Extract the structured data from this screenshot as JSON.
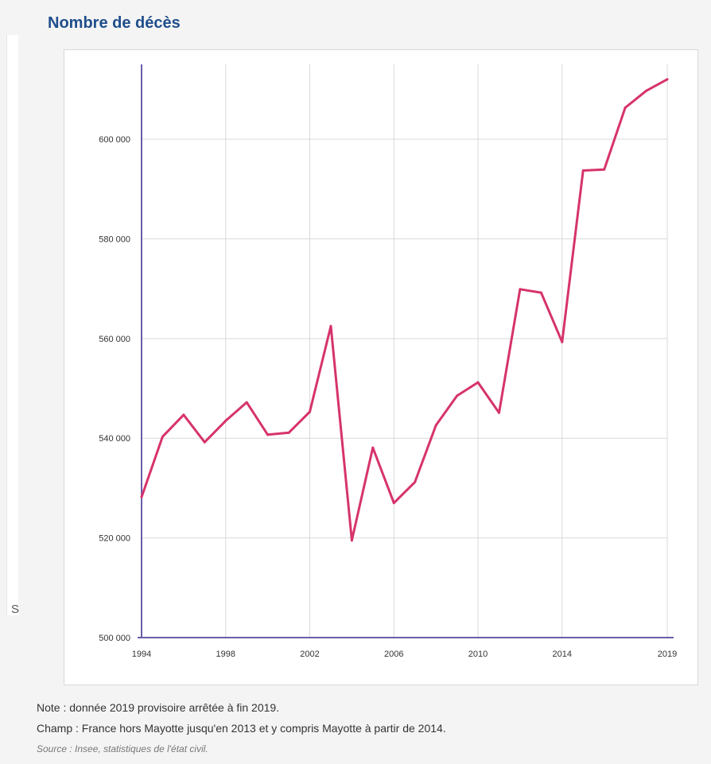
{
  "page": {
    "title": "Nombre de décès",
    "background_letter": "S"
  },
  "chart_data": {
    "type": "line",
    "title": "Nombre de décès",
    "xlabel": "",
    "ylabel": "",
    "xlim": [
      1994,
      2019
    ],
    "ylim": [
      500000,
      615000
    ],
    "x_ticks": [
      1994,
      1998,
      2002,
      2006,
      2010,
      2014,
      2019
    ],
    "x_tick_labels": [
      "1994",
      "1998",
      "2002",
      "2006",
      "2010",
      "2014",
      "2019"
    ],
    "y_ticks": [
      500000,
      520000,
      540000,
      560000,
      580000,
      600000
    ],
    "y_tick_labels": [
      "500 000",
      "520 000",
      "540 000",
      "560 000",
      "580 000",
      "600 000"
    ],
    "grid": true,
    "series": [
      {
        "name": "",
        "color": "#d6336c",
        "x": [
          1994,
          1995,
          1996,
          1997,
          1998,
          1999,
          2000,
          2001,
          2002,
          2003,
          2004,
          2005,
          2006,
          2007,
          2008,
          2009,
          2010,
          2011,
          2012,
          2013,
          2014,
          2015,
          2016,
          2017,
          2018,
          2019
        ],
        "values": [
          528200,
          540300,
          544700,
          539200,
          543500,
          547200,
          540700,
          541100,
          545300,
          562500,
          519500,
          538100,
          527000,
          531200,
          542600,
          548500,
          551200,
          545100,
          569900,
          569200,
          559300,
          593700,
          593900,
          606300,
          609700,
          612000
        ]
      }
    ],
    "colors": {
      "line": "#d6336c",
      "axis": "#6b5ea8",
      "grid": "#d9d9d9"
    }
  },
  "notes": {
    "note": "Note : donnée 2019 provisoire arrêtée à fin 2019.",
    "champ": "Champ : France hors Mayotte jusqu'en 2013 et y compris Mayotte à partir de 2014.",
    "source": "Source : Insee, statistiques de l'état civil."
  }
}
